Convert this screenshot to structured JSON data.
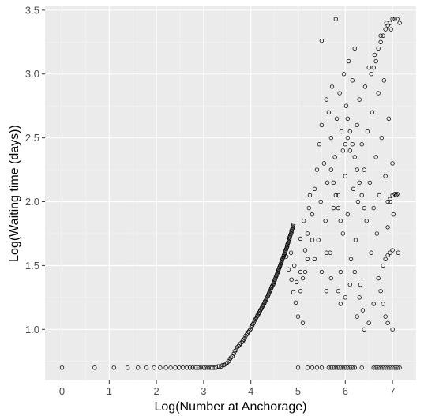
{
  "chart_data": {
    "type": "scatter",
    "title": "",
    "xlabel": "Log(Number at Anchorage)",
    "ylabel": "Log(Waiting time (days))",
    "xlim": [
      -0.36,
      7.5
    ],
    "ylim": [
      0.6,
      3.53
    ],
    "x_ticks": [
      0,
      1,
      2,
      3,
      4,
      5,
      6,
      7
    ],
    "y_ticks": [
      1.0,
      1.5,
      2.0,
      2.5,
      3.0,
      3.5
    ],
    "x_tick_labels": [
      "0",
      "1",
      "2",
      "3",
      "4",
      "5",
      "6",
      "7"
    ],
    "y_tick_labels": [
      "1.0",
      "1.5",
      "2.0",
      "2.5",
      "3.0",
      "3.5"
    ],
    "grid": true,
    "background": "#ebebeb",
    "marker": "open-circle",
    "legend": "none",
    "series": [
      {
        "points": [
          [
            0.0,
            0.7
          ],
          [
            0.69,
            0.7
          ],
          [
            1.1,
            0.7
          ],
          [
            1.39,
            0.7
          ],
          [
            1.61,
            0.7
          ],
          [
            1.79,
            0.7
          ],
          [
            1.95,
            0.7
          ],
          [
            2.08,
            0.7
          ],
          [
            2.2,
            0.7
          ],
          [
            2.3,
            0.7
          ],
          [
            2.4,
            0.7
          ],
          [
            2.48,
            0.7
          ],
          [
            2.56,
            0.7
          ],
          [
            2.64,
            0.7
          ],
          [
            2.71,
            0.7
          ],
          [
            2.77,
            0.7
          ],
          [
            2.83,
            0.7
          ],
          [
            2.89,
            0.7
          ],
          [
            2.94,
            0.7
          ],
          [
            3.0,
            0.7
          ],
          [
            3.04,
            0.7
          ],
          [
            3.09,
            0.7
          ],
          [
            3.14,
            0.7
          ],
          [
            3.18,
            0.7
          ],
          [
            3.22,
            0.7
          ],
          [
            3.26,
            0.7
          ],
          [
            3.3,
            0.71
          ],
          [
            3.33,
            0.71
          ],
          [
            3.37,
            0.71
          ],
          [
            3.4,
            0.72
          ],
          [
            3.43,
            0.72
          ],
          [
            3.47,
            0.73
          ],
          [
            3.5,
            0.74
          ],
          [
            3.53,
            0.75
          ],
          [
            3.56,
            0.77
          ],
          [
            3.58,
            0.78
          ],
          [
            3.61,
            0.79
          ],
          [
            3.64,
            0.81
          ],
          [
            3.66,
            0.83
          ],
          [
            3.69,
            0.84
          ],
          [
            3.71,
            0.86
          ],
          [
            3.74,
            0.87
          ],
          [
            3.76,
            0.88
          ],
          [
            3.78,
            0.89
          ],
          [
            3.81,
            0.9
          ],
          [
            3.83,
            0.91
          ],
          [
            3.85,
            0.92
          ],
          [
            3.87,
            0.93
          ],
          [
            3.89,
            0.95
          ],
          [
            3.91,
            0.96
          ],
          [
            3.93,
            0.97
          ],
          [
            3.95,
            0.98
          ],
          [
            3.97,
            0.99
          ],
          [
            3.99,
            1.0
          ],
          [
            4.01,
            1.02
          ],
          [
            4.03,
            1.03
          ],
          [
            4.04,
            1.04
          ],
          [
            4.06,
            1.05
          ],
          [
            4.08,
            1.07
          ],
          [
            4.1,
            1.08
          ],
          [
            4.11,
            1.09
          ],
          [
            4.13,
            1.1
          ],
          [
            4.14,
            1.11
          ],
          [
            4.16,
            1.12
          ],
          [
            4.17,
            1.13
          ],
          [
            4.19,
            1.14
          ],
          [
            4.2,
            1.15
          ],
          [
            4.22,
            1.16
          ],
          [
            4.23,
            1.17
          ],
          [
            4.25,
            1.18
          ],
          [
            4.26,
            1.19
          ],
          [
            4.28,
            1.2
          ],
          [
            4.29,
            1.21
          ],
          [
            4.3,
            1.22
          ],
          [
            4.32,
            1.23
          ],
          [
            4.33,
            1.24
          ],
          [
            4.34,
            1.25
          ],
          [
            4.36,
            1.26
          ],
          [
            4.37,
            1.27
          ],
          [
            4.38,
            1.28
          ],
          [
            4.39,
            1.29
          ],
          [
            4.41,
            1.3
          ],
          [
            4.42,
            1.31
          ],
          [
            4.43,
            1.32
          ],
          [
            4.44,
            1.33
          ],
          [
            4.45,
            1.34
          ],
          [
            4.47,
            1.35
          ],
          [
            4.48,
            1.36
          ],
          [
            4.49,
            1.37
          ],
          [
            4.5,
            1.38
          ],
          [
            4.51,
            1.39
          ],
          [
            4.52,
            1.4
          ],
          [
            4.53,
            1.41
          ],
          [
            4.54,
            1.42
          ],
          [
            4.55,
            1.43
          ],
          [
            4.56,
            1.44
          ],
          [
            4.57,
            1.45
          ],
          [
            4.58,
            1.46
          ],
          [
            4.59,
            1.47
          ],
          [
            4.6,
            1.48
          ],
          [
            4.61,
            1.49
          ],
          [
            4.62,
            1.5
          ],
          [
            4.63,
            1.51
          ],
          [
            4.64,
            1.52
          ],
          [
            4.65,
            1.53
          ],
          [
            4.66,
            1.54
          ],
          [
            4.67,
            1.55
          ],
          [
            4.68,
            1.56
          ],
          [
            4.69,
            1.57
          ],
          [
            4.7,
            1.58
          ],
          [
            4.71,
            1.59
          ],
          [
            4.72,
            1.6
          ],
          [
            4.73,
            1.61
          ],
          [
            4.74,
            1.62
          ],
          [
            4.75,
            1.63
          ],
          [
            4.76,
            1.64
          ],
          [
            4.77,
            1.65
          ],
          [
            4.77,
            1.66
          ],
          [
            4.78,
            1.67
          ],
          [
            4.79,
            1.68
          ],
          [
            4.8,
            1.69
          ],
          [
            4.81,
            1.7
          ],
          [
            4.82,
            1.71
          ],
          [
            4.82,
            1.72
          ],
          [
            4.83,
            1.73
          ],
          [
            4.84,
            1.74
          ],
          [
            4.85,
            1.75
          ],
          [
            4.86,
            1.76
          ],
          [
            4.86,
            1.77
          ],
          [
            4.87,
            1.78
          ],
          [
            4.88,
            1.79
          ],
          [
            4.89,
            1.8
          ],
          [
            4.89,
            1.81
          ],
          [
            4.9,
            1.82
          ],
          [
            4.75,
            1.57
          ],
          [
            4.8,
            1.47
          ],
          [
            4.86,
            1.39
          ],
          [
            4.9,
            1.29
          ],
          [
            4.95,
            1.21
          ],
          [
            5.0,
            1.1
          ],
          [
            5.1,
            1.05
          ],
          [
            4.97,
            1.37
          ],
          [
            5.05,
            1.45
          ],
          [
            4.85,
            1.6
          ],
          [
            4.92,
            1.5
          ],
          [
            5.05,
            1.3
          ],
          [
            5.05,
            1.71
          ],
          [
            5.12,
            1.85
          ],
          [
            5.15,
            1.62
          ],
          [
            5.2,
            1.75
          ],
          [
            5.23,
            1.95
          ],
          [
            5.25,
            2.05
          ],
          [
            5.3,
            1.9
          ],
          [
            5.35,
            2.1
          ],
          [
            5.35,
            1.55
          ],
          [
            5.4,
            2.25
          ],
          [
            5.43,
            1.7
          ],
          [
            5.45,
            2.45
          ],
          [
            5.48,
            2.0
          ],
          [
            5.5,
            2.6
          ],
          [
            5.5,
            3.26
          ],
          [
            5.55,
            2.3
          ],
          [
            5.58,
            1.85
          ],
          [
            5.6,
            2.8
          ],
          [
            5.62,
            2.15
          ],
          [
            5.65,
            2.7
          ],
          [
            5.68,
            1.6
          ],
          [
            5.7,
            2.5
          ],
          [
            5.72,
            2.9
          ],
          [
            5.75,
            1.95
          ],
          [
            5.78,
            2.35
          ],
          [
            5.8,
            3.43
          ],
          [
            5.82,
            2.65
          ],
          [
            5.85,
            2.05
          ],
          [
            5.88,
            2.85
          ],
          [
            5.9,
            1.45
          ],
          [
            5.92,
            2.55
          ],
          [
            5.95,
            1.75
          ],
          [
            5.97,
            3.0
          ],
          [
            6.0,
            2.2
          ],
          [
            6.02,
            2.75
          ],
          [
            6.05,
            1.9
          ],
          [
            6.07,
            3.1
          ],
          [
            6.1,
            2.4
          ],
          [
            6.12,
            1.55
          ],
          [
            6.15,
            2.95
          ],
          [
            6.17,
            2.1
          ],
          [
            6.2,
            3.2
          ],
          [
            6.22,
            1.7
          ],
          [
            6.25,
            2.6
          ],
          [
            6.27,
            2.0
          ],
          [
            6.3,
            2.8
          ],
          [
            6.32,
            1.35
          ],
          [
            6.35,
            2.45
          ],
          [
            6.37,
            1.15
          ],
          [
            6.4,
            2.25
          ],
          [
            6.42,
            2.9
          ],
          [
            6.45,
            1.85
          ],
          [
            6.47,
            2.55
          ],
          [
            6.5,
            3.05
          ],
          [
            6.52,
            2.15
          ],
          [
            6.55,
            1.6
          ],
          [
            6.57,
            2.7
          ],
          [
            6.6,
            1.95
          ],
          [
            6.62,
            3.15
          ],
          [
            6.65,
            2.35
          ],
          [
            6.67,
            1.75
          ],
          [
            6.7,
            2.85
          ],
          [
            6.72,
            2.05
          ],
          [
            6.75,
            3.3
          ],
          [
            6.77,
            2.5
          ],
          [
            6.8,
            1.5
          ],
          [
            6.82,
            2.95
          ],
          [
            6.85,
            2.2
          ],
          [
            6.87,
            3.4
          ],
          [
            6.9,
            1.8
          ],
          [
            6.92,
            2.65
          ],
          [
            6.95,
            2.0
          ],
          [
            6.97,
            3.35
          ],
          [
            7.0,
            2.3
          ],
          [
            7.02,
            1.9
          ],
          [
            7.05,
            3.43
          ],
          [
            7.08,
            2.05
          ],
          [
            7.1,
            3.43
          ],
          [
            7.12,
            1.6
          ],
          [
            7.15,
            3.4
          ],
          [
            6.55,
            3.0
          ],
          [
            6.6,
            3.05
          ],
          [
            6.65,
            3.1
          ],
          [
            6.7,
            3.2
          ],
          [
            6.75,
            3.25
          ],
          [
            6.8,
            3.3
          ],
          [
            6.85,
            3.35
          ],
          [
            6.9,
            3.38
          ],
          [
            6.95,
            3.4
          ],
          [
            7.0,
            3.43
          ],
          [
            6.7,
            1.4
          ],
          [
            6.75,
            1.3
          ],
          [
            6.8,
            1.2
          ],
          [
            6.85,
            1.1
          ],
          [
            6.9,
            1.05
          ],
          [
            7.0,
            1.0
          ],
          [
            6.85,
            1.55
          ],
          [
            6.9,
            1.58
          ],
          [
            6.95,
            1.6
          ],
          [
            7.0,
            1.62
          ],
          [
            6.9,
            2.0
          ],
          [
            6.95,
            2.02
          ],
          [
            7.0,
            2.05
          ],
          [
            7.05,
            2.06
          ],
          [
            7.1,
            2.06
          ],
          [
            6.3,
            1.25
          ],
          [
            6.25,
            1.1
          ],
          [
            6.2,
            1.45
          ],
          [
            6.1,
            1.35
          ],
          [
            6.0,
            1.25
          ],
          [
            5.9,
            1.2
          ],
          [
            5.85,
            1.3
          ],
          [
            5.7,
            1.4
          ],
          [
            5.6,
            1.3
          ],
          [
            5.5,
            1.45
          ],
          [
            6.4,
            1.0
          ],
          [
            6.5,
            1.05
          ],
          [
            6.6,
            1.2
          ],
          [
            5.3,
            1.7
          ],
          [
            5.2,
            1.55
          ],
          [
            5.15,
            1.45
          ],
          [
            5.1,
            1.4
          ],
          [
            5.6,
            1.6
          ],
          [
            6.05,
            2.65
          ],
          [
            6.1,
            2.55
          ],
          [
            6.15,
            2.45
          ],
          [
            6.2,
            2.35
          ],
          [
            6.25,
            2.25
          ],
          [
            6.3,
            2.15
          ],
          [
            6.35,
            2.05
          ],
          [
            6.4,
            1.95
          ],
          [
            5.7,
            2.25
          ],
          [
            5.75,
            2.15
          ],
          [
            5.8,
            2.05
          ],
          [
            5.85,
            1.95
          ],
          [
            5.9,
            1.85
          ],
          [
            5.95,
            2.4
          ],
          [
            6.0,
            2.45
          ],
          [
            6.05,
            2.5
          ],
          [
            5.0,
            0.7
          ],
          [
            5.2,
            0.7
          ],
          [
            5.3,
            0.7
          ],
          [
            5.4,
            0.7
          ],
          [
            5.5,
            0.7
          ],
          [
            5.65,
            0.7
          ],
          [
            5.7,
            0.7
          ],
          [
            5.75,
            0.7
          ],
          [
            5.8,
            0.7
          ],
          [
            5.85,
            0.7
          ],
          [
            5.9,
            0.7
          ],
          [
            5.95,
            0.7
          ],
          [
            6.0,
            0.7
          ],
          [
            6.05,
            0.7
          ],
          [
            6.1,
            0.7
          ],
          [
            6.15,
            0.7
          ],
          [
            6.2,
            0.7
          ],
          [
            6.35,
            0.7
          ],
          [
            6.6,
            0.7
          ],
          [
            6.65,
            0.7
          ],
          [
            6.7,
            0.7
          ],
          [
            6.75,
            0.7
          ],
          [
            6.8,
            0.7
          ],
          [
            6.85,
            0.7
          ],
          [
            6.9,
            0.7
          ],
          [
            6.95,
            0.7
          ],
          [
            7.0,
            0.7
          ],
          [
            7.05,
            0.7
          ],
          [
            7.1,
            0.7
          ],
          [
            7.15,
            0.7
          ]
        ]
      }
    ]
  }
}
